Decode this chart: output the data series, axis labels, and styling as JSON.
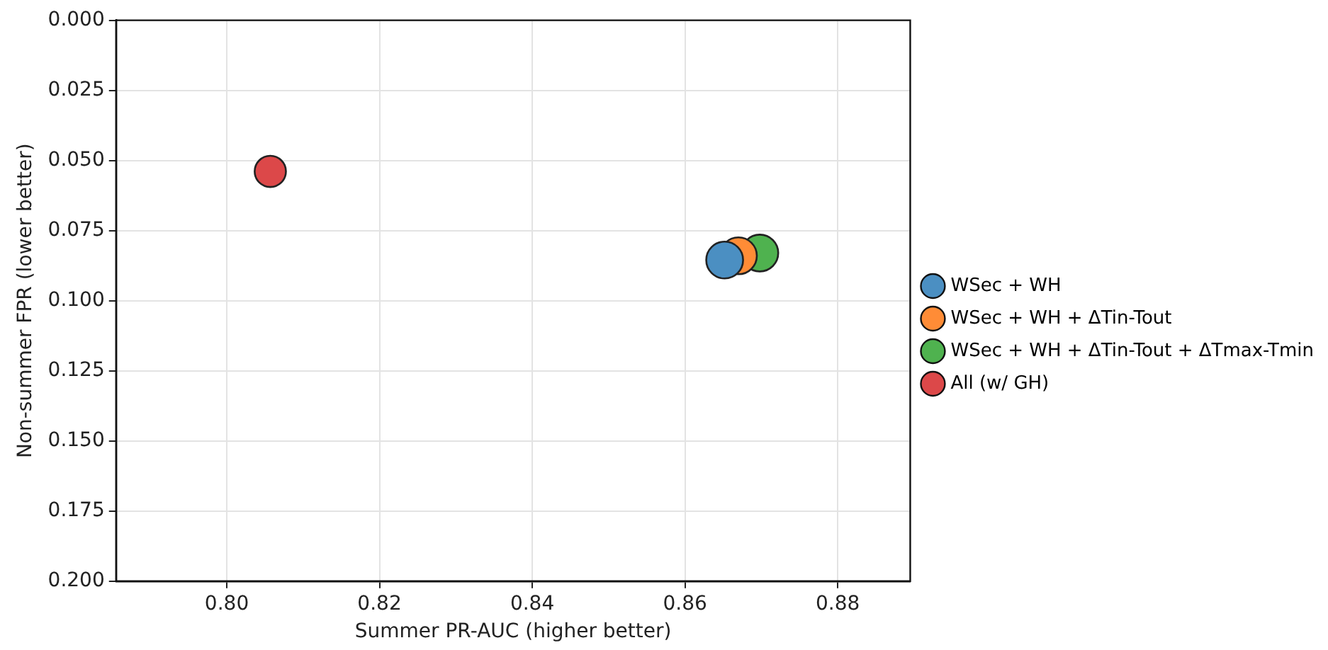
{
  "chart_data": {
    "type": "bubble",
    "xlabel": "Summer PR-AUC (higher better)",
    "ylabel": "Non-summer FPR (lower better)",
    "xlim": [
      0.7855,
      0.8895
    ],
    "xticks": [
      {
        "value": 0.8,
        "label": "0.80"
      },
      {
        "value": 0.82,
        "label": "0.82"
      },
      {
        "value": 0.84,
        "label": "0.84"
      },
      {
        "value": 0.86,
        "label": "0.86"
      },
      {
        "value": 0.88,
        "label": "0.88"
      }
    ],
    "ylim": [
      0.2,
      0.0
    ],
    "yticks": [
      {
        "value": 0,
        "label": "0.000"
      },
      {
        "value": 0.025,
        "label": "0.025"
      },
      {
        "value": 0.05,
        "label": "0.050"
      },
      {
        "value": 0.075,
        "label": "0.075"
      },
      {
        "value": 0.1,
        "label": "0.100"
      },
      {
        "value": 0.125,
        "label": "0.125"
      },
      {
        "value": 0.15,
        "label": "0.150"
      },
      {
        "value": 0.175,
        "label": "0.175"
      },
      {
        "value": 0.2,
        "label": "0.200"
      }
    ],
    "grid": true,
    "legend": "right",
    "series": [
      {
        "name": "WSec + WH",
        "color": "#4b8fc2",
        "x": [
          0.8652
        ],
        "values": [
          0.0855
        ],
        "sizes": [
          1
        ]
      },
      {
        "name": "WSec + WH + ΔTin-Tout",
        "color": "#ff8c36",
        "x": [
          0.867
        ],
        "values": [
          0.084
        ],
        "sizes": [
          1
        ]
      },
      {
        "name": "WSec + WH + ΔTin-Tout + ΔTmax-Tmin",
        "color": "#4fb24f",
        "x": [
          0.8698
        ],
        "values": [
          0.083
        ],
        "sizes": [
          1
        ]
      },
      {
        "name": "All (w/ GH)",
        "color": "#dc4849",
        "x": [
          0.8057
        ],
        "values": [
          0.0539
        ],
        "sizes": [
          0.72
        ]
      }
    ]
  }
}
